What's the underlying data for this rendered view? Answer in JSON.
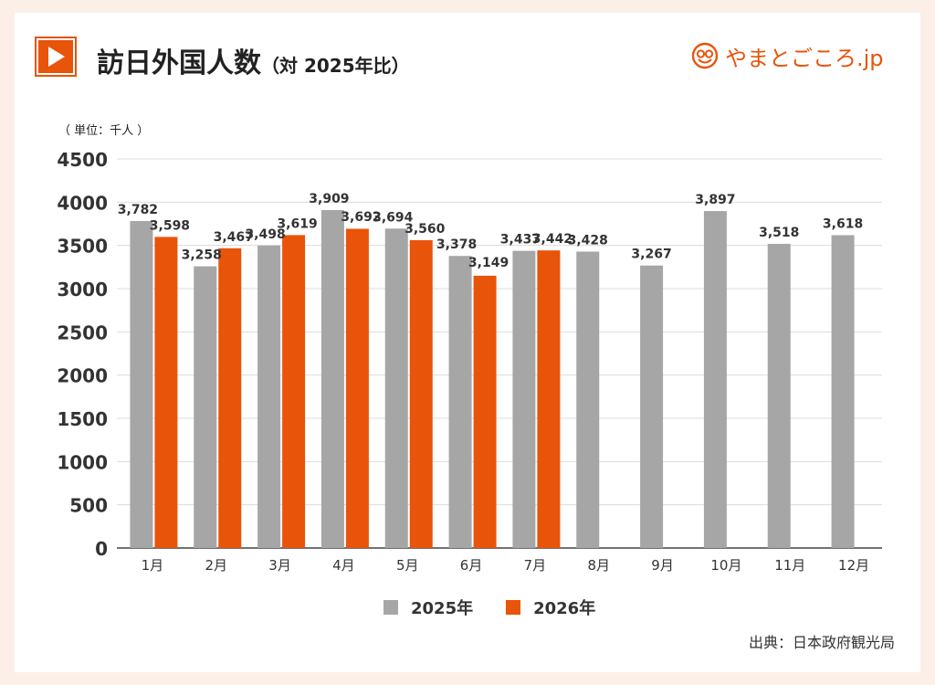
{
  "header": {
    "title": "訪日外国人数",
    "subtitle": "（対 2025年比）"
  },
  "logo": {
    "text": "やまとごころ.jp"
  },
  "unit_label": "（ 単位：千人 ）",
  "source": "出典：日本政府観光局",
  "colors": {
    "accent": "#e8540a",
    "series_2025": "#a6a6a6",
    "series_2026": "#e8540a"
  },
  "chart_data": {
    "type": "bar",
    "categories": [
      "1月",
      "2月",
      "3月",
      "4月",
      "5月",
      "6月",
      "7月",
      "8月",
      "9月",
      "10月",
      "11月",
      "12月"
    ],
    "series": [
      {
        "name": "2025年",
        "color": "#a6a6a6",
        "values": [
          3782,
          3258,
          3498,
          3909,
          3694,
          3378,
          3437,
          3428,
          3267,
          3897,
          3518,
          3618
        ]
      },
      {
        "name": "2026年",
        "color": "#e8540a",
        "values": [
          3598,
          3467,
          3619,
          3692,
          3560,
          3149,
          3442,
          null,
          null,
          null,
          null,
          null
        ]
      }
    ],
    "ylim": [
      0,
      4500
    ],
    "yticks": [
      0,
      500,
      1000,
      1500,
      2000,
      2500,
      3000,
      3500,
      4000,
      4500
    ],
    "grid": true,
    "legend": "bottom"
  }
}
